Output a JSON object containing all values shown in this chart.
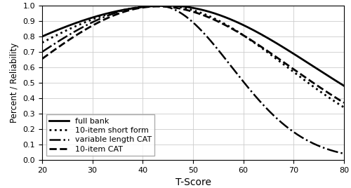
{
  "x_min": 20,
  "x_max": 80,
  "y_min": 0,
  "y_max": 1,
  "x_ticks": [
    20,
    30,
    40,
    50,
    60,
    70,
    80
  ],
  "y_ticks": [
    0,
    0.1,
    0.2,
    0.3,
    0.4,
    0.5,
    0.6,
    0.7,
    0.8,
    0.9,
    1
  ],
  "xlabel": "T-Score",
  "ylabel": "Percent / Reliability",
  "background_color": "#ffffff",
  "grid_color": "#cccccc",
  "curves_params": [
    {
      "label": "full bank",
      "linestyle": "solid",
      "linewidth": 2.0,
      "color": "black",
      "peak_x": 45,
      "peak_val": 1.0,
      "y_at_20": 0.8,
      "y_at_80": 0.48
    },
    {
      "label": "10-item short form",
      "linestyle": "dotted",
      "linewidth": 2.0,
      "color": "black",
      "peak_x": 44,
      "peak_val": 1.0,
      "y_at_20": 0.76,
      "y_at_80": 0.34
    },
    {
      "label": "variable length CAT",
      "linestyle": "dashdot",
      "linewidth": 1.8,
      "color": "black",
      "peak_x": 43,
      "peak_val": 1.0,
      "y_at_20": 0.7,
      "y_at_80": 0.04
    },
    {
      "label": "10-item CAT",
      "linestyle": "dashed",
      "linewidth": 2.0,
      "color": "black",
      "peak_x": 43,
      "peak_val": 0.995,
      "y_at_20": 0.655,
      "y_at_80": 0.37
    }
  ],
  "legend_fontsize": 8
}
